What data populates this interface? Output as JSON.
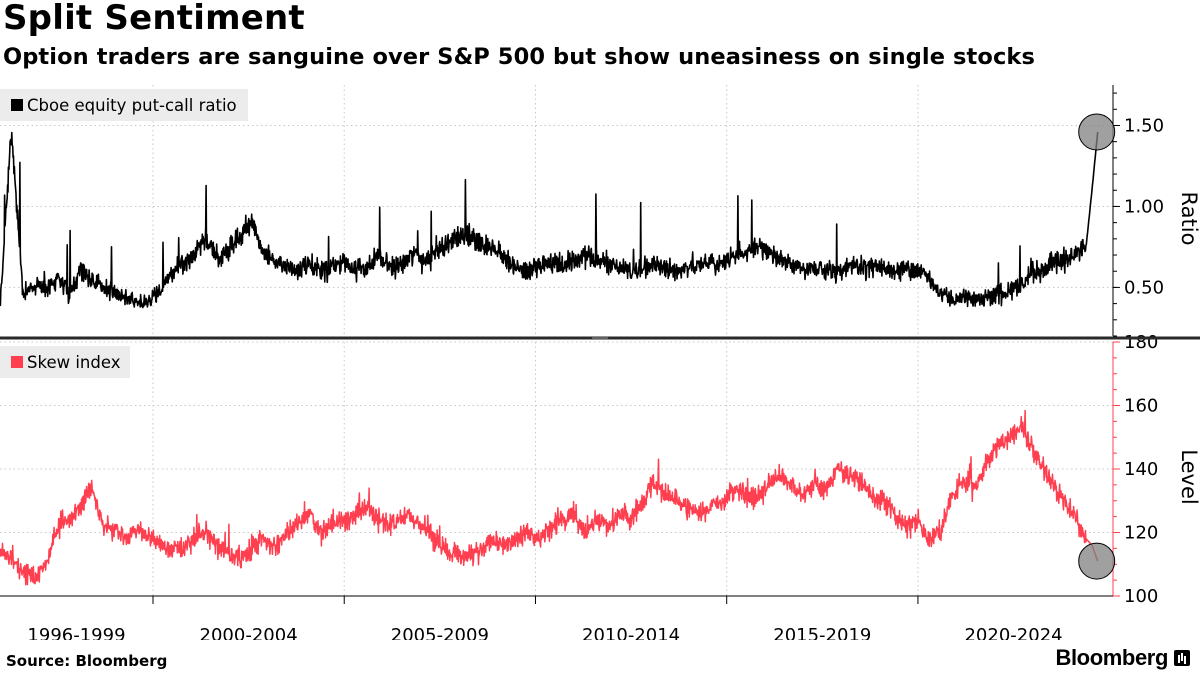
{
  "header": {
    "title": "Split Sentiment",
    "subtitle": "Option traders are sanguine over S&P 500 but show uneasiness on single stocks"
  },
  "footer": {
    "source": "Source: Bloomberg",
    "brand": "Bloomberg"
  },
  "chart_data": [
    {
      "type": "line",
      "title": "Split Sentiment",
      "subtitle": "Option traders are sanguine over S&P 500 but show uneasiness on single stocks",
      "legend": "Cboe equity put-call ratio",
      "ylabel": "Ratio",
      "ylim": [
        0.2,
        1.75
      ],
      "yticks": [
        0.5,
        1.0,
        1.5
      ],
      "ytick_labels": [
        "0.50",
        "1.00",
        "1.50"
      ],
      "xlim": [
        1996.0,
        2025.1
      ],
      "color": "#000000",
      "annotation": {
        "x": 2024.7,
        "y": 1.46,
        "kind": "circle-highlight"
      },
      "series": [
        {
          "name": "Cboe equity put-call ratio",
          "x": [
            1996.0,
            1996.3,
            1996.6,
            1996.9,
            1997.2,
            1997.5,
            1997.8,
            1998.1,
            1998.4,
            1998.7,
            1999.0,
            1999.3,
            1999.6,
            1999.9,
            2000.2,
            2000.5,
            2000.8,
            2001.1,
            2001.4,
            2001.7,
            2002.0,
            2002.3,
            2002.6,
            2002.9,
            2003.2,
            2003.5,
            2003.8,
            2004.1,
            2004.4,
            2004.7,
            2005.0,
            2005.3,
            2005.6,
            2005.9,
            2006.2,
            2006.5,
            2006.8,
            2007.1,
            2007.4,
            2007.7,
            2008.0,
            2008.3,
            2008.6,
            2008.9,
            2009.2,
            2009.5,
            2009.8,
            2010.1,
            2010.4,
            2010.7,
            2011.0,
            2011.3,
            2011.6,
            2011.9,
            2012.2,
            2012.5,
            2012.8,
            2013.1,
            2013.4,
            2013.7,
            2014.0,
            2014.3,
            2014.6,
            2014.9,
            2015.2,
            2015.5,
            2015.8,
            2016.1,
            2016.4,
            2016.7,
            2017.0,
            2017.3,
            2017.6,
            2017.9,
            2018.2,
            2018.5,
            2018.8,
            2019.1,
            2019.4,
            2019.7,
            2020.0,
            2020.3,
            2020.6,
            2020.9,
            2021.2,
            2021.5,
            2021.8,
            2022.1,
            2022.4,
            2022.7,
            2023.0,
            2023.3,
            2023.6,
            2023.9,
            2024.2,
            2024.4,
            2024.55,
            2024.7
          ],
          "y": [
            0.38,
            1.47,
            0.45,
            0.52,
            0.48,
            0.58,
            0.45,
            0.62,
            0.55,
            0.5,
            0.47,
            0.44,
            0.4,
            0.42,
            0.48,
            0.6,
            0.65,
            0.72,
            0.8,
            0.68,
            0.74,
            0.82,
            0.9,
            0.7,
            0.66,
            0.62,
            0.6,
            0.64,
            0.6,
            0.62,
            0.65,
            0.6,
            0.64,
            0.68,
            0.62,
            0.64,
            0.7,
            0.66,
            0.72,
            0.78,
            0.8,
            0.82,
            0.76,
            0.74,
            0.68,
            0.62,
            0.6,
            0.62,
            0.66,
            0.64,
            0.66,
            0.7,
            0.68,
            0.64,
            0.62,
            0.6,
            0.62,
            0.64,
            0.62,
            0.6,
            0.62,
            0.64,
            0.66,
            0.64,
            0.7,
            0.72,
            0.74,
            0.72,
            0.68,
            0.64,
            0.6,
            0.62,
            0.6,
            0.6,
            0.62,
            0.64,
            0.62,
            0.6,
            0.6,
            0.62,
            0.6,
            0.56,
            0.46,
            0.42,
            0.44,
            0.42,
            0.44,
            0.46,
            0.48,
            0.52,
            0.58,
            0.62,
            0.66,
            0.68,
            0.72,
            0.76,
            1.1,
            1.46
          ]
        }
      ]
    },
    {
      "type": "line",
      "legend": "Skew index",
      "ylabel": "Level",
      "ylim": [
        100,
        180
      ],
      "yticks": [
        100,
        120,
        140,
        160,
        180
      ],
      "ytick_labels": [
        "100",
        "120",
        "140",
        "160",
        "180"
      ],
      "xlim": [
        1996.0,
        2025.1
      ],
      "x_tick_labels": [
        "1996-1999",
        "2000-2004",
        "2005-2009",
        "2010-2014",
        "2015-2019",
        "2020-2024"
      ],
      "x_tick_positions": [
        1998.0,
        2002.5,
        2007.5,
        2012.5,
        2017.5,
        2022.5
      ],
      "x_boundaries": [
        2000.0,
        2005.0,
        2010.0,
        2015.0,
        2020.0
      ],
      "color": "#ff3f4f",
      "annotation": {
        "x": 2024.7,
        "y": 111,
        "kind": "circle-highlight"
      },
      "series": [
        {
          "name": "Skew index",
          "x": [
            1996.0,
            1996.3,
            1996.6,
            1996.9,
            1997.2,
            1997.5,
            1997.8,
            1998.1,
            1998.4,
            1998.7,
            1999.0,
            1999.3,
            1999.6,
            1999.9,
            2000.2,
            2000.5,
            2000.8,
            2001.1,
            2001.4,
            2001.7,
            2002.0,
            2002.3,
            2002.6,
            2002.9,
            2003.2,
            2003.5,
            2003.8,
            2004.1,
            2004.4,
            2004.7,
            2005.0,
            2005.3,
            2005.6,
            2005.9,
            2006.2,
            2006.5,
            2006.8,
            2007.1,
            2007.4,
            2007.7,
            2008.0,
            2008.3,
            2008.6,
            2008.9,
            2009.2,
            2009.5,
            2009.8,
            2010.1,
            2010.4,
            2010.7,
            2011.0,
            2011.3,
            2011.6,
            2011.9,
            2012.2,
            2012.5,
            2012.8,
            2013.1,
            2013.4,
            2013.7,
            2014.0,
            2014.3,
            2014.6,
            2014.9,
            2015.2,
            2015.5,
            2015.8,
            2016.1,
            2016.4,
            2016.7,
            2017.0,
            2017.3,
            2017.6,
            2017.9,
            2018.2,
            2018.5,
            2018.8,
            2019.1,
            2019.4,
            2019.7,
            2020.0,
            2020.3,
            2020.6,
            2020.9,
            2021.2,
            2021.5,
            2021.8,
            2022.1,
            2022.4,
            2022.7,
            2023.0,
            2023.3,
            2023.6,
            2023.9,
            2024.2,
            2024.4,
            2024.55,
            2024.7
          ],
          "y": [
            114,
            112,
            108,
            106,
            110,
            122,
            124,
            128,
            134,
            122,
            120,
            118,
            122,
            119,
            116,
            114,
            115,
            118,
            120,
            116,
            113,
            112,
            115,
            118,
            116,
            120,
            124,
            126,
            120,
            122,
            124,
            126,
            128,
            124,
            122,
            126,
            124,
            122,
            118,
            114,
            112,
            113,
            115,
            118,
            116,
            118,
            120,
            118,
            122,
            124,
            126,
            120,
            124,
            122,
            126,
            124,
            130,
            136,
            132,
            130,
            128,
            126,
            128,
            130,
            134,
            132,
            130,
            136,
            138,
            134,
            132,
            136,
            134,
            140,
            138,
            136,
            132,
            130,
            126,
            122,
            124,
            118,
            120,
            132,
            136,
            134,
            142,
            148,
            150,
            154,
            146,
            140,
            134,
            128,
            124,
            118,
            116,
            111
          ]
        }
      ]
    }
  ]
}
